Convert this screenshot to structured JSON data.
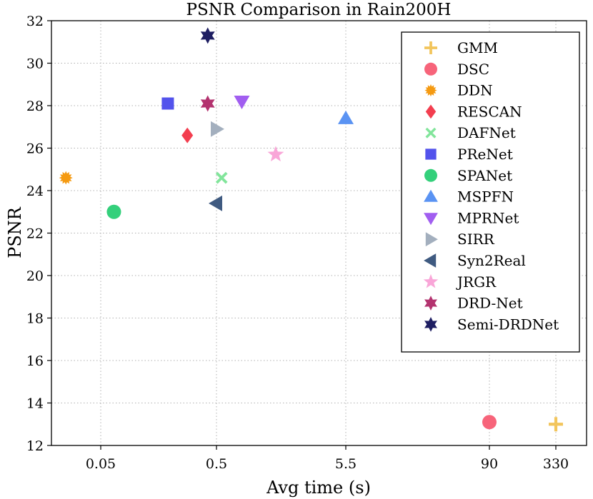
{
  "chart_data": {
    "type": "scatter",
    "title": "PSNR Comparison in Rain200H",
    "xlabel": "Avg time (s)",
    "ylabel": "PSNR",
    "x_scale": "categorical-log",
    "x_ticks": [
      "0.05",
      "0.5",
      "5.5",
      "90",
      "330"
    ],
    "ylim": [
      12,
      32
    ],
    "y_ticks": [
      12,
      14,
      16,
      18,
      20,
      22,
      24,
      26,
      28,
      30,
      32
    ],
    "grid": true,
    "legend_position": "top-right",
    "series": [
      {
        "name": "GMM",
        "marker": "plus",
        "color": "#f2c55c",
        "x": 330,
        "y": 13.0
      },
      {
        "name": "DSC",
        "marker": "circle",
        "color": "#f7647a",
        "x": 90,
        "y": 13.1
      },
      {
        "name": "DDN",
        "marker": "sun",
        "color": "#f59a11",
        "x": 0.025,
        "y": 24.6
      },
      {
        "name": "RESCAN",
        "marker": "diamond",
        "color": "#f33e4f",
        "x": 0.28,
        "y": 26.6
      },
      {
        "name": "DAFNet",
        "marker": "x",
        "color": "#82e59b",
        "x": 0.55,
        "y": 24.6
      },
      {
        "name": "PReNet",
        "marker": "square",
        "color": "#5353ec",
        "x": 0.19,
        "y": 28.1
      },
      {
        "name": "SPANet",
        "marker": "circle",
        "color": "#34d07b",
        "x": 0.065,
        "y": 23.0
      },
      {
        "name": "MSPFN",
        "marker": "triangle-up",
        "color": "#5a93f3",
        "x": 5.5,
        "y": 27.4
      },
      {
        "name": "MPRNet",
        "marker": "triangle-down",
        "color": "#a15ef0",
        "x": 0.8,
        "y": 28.2
      },
      {
        "name": "SIRR",
        "marker": "triangle-right",
        "color": "#a3afbe",
        "x": 0.5,
        "y": 26.9
      },
      {
        "name": "Syn2Real",
        "marker": "triangle-left",
        "color": "#3f5a80",
        "x": 0.5,
        "y": 23.4
      },
      {
        "name": "JRGR",
        "marker": "star",
        "color": "#f9a6d8",
        "x": 1.5,
        "y": 25.7
      },
      {
        "name": "DRD-Net",
        "marker": "hexagram",
        "color": "#b3336f",
        "x": 0.42,
        "y": 28.1
      },
      {
        "name": "Semi-DRDNet",
        "marker": "hexagram",
        "color": "#1e1e62",
        "x": 0.42,
        "y": 31.3
      }
    ]
  }
}
